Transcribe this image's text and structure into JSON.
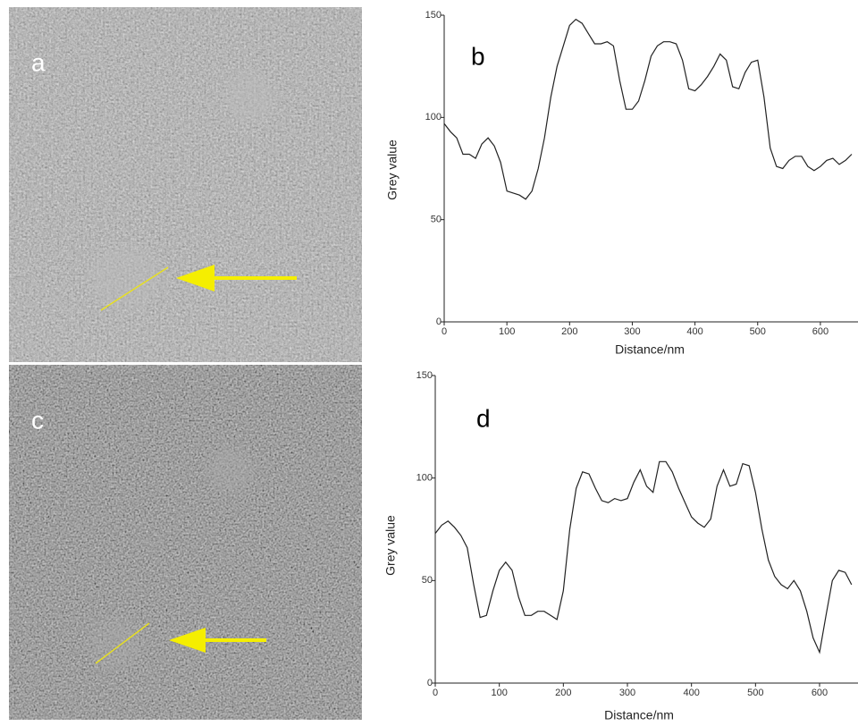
{
  "images": [
    {
      "label": "a"
    },
    {
      "label": "c"
    }
  ],
  "chart_data": [
    {
      "type": "line",
      "panel_label": "b",
      "xlabel": "Distance/nm",
      "ylabel": "Grey value",
      "x": [
        0,
        10,
        20,
        30,
        40,
        50,
        60,
        70,
        80,
        90,
        100,
        110,
        120,
        130,
        140,
        150,
        160,
        170,
        180,
        190,
        200,
        210,
        220,
        230,
        240,
        250,
        260,
        270,
        280,
        290,
        300,
        310,
        320,
        330,
        340,
        350,
        360,
        370,
        380,
        390,
        400,
        410,
        420,
        430,
        440,
        450,
        460,
        470,
        480,
        490,
        500,
        510,
        520,
        530,
        540,
        550,
        560,
        570,
        580,
        590,
        600,
        610,
        620,
        630,
        640,
        650
      ],
      "series": [
        {
          "color": "#222222",
          "values": [
            97,
            93,
            90,
            82,
            82,
            80,
            87,
            90,
            86,
            78,
            64,
            63,
            62,
            60,
            64,
            75,
            90,
            110,
            125,
            135,
            145,
            148,
            146,
            141,
            136,
            136,
            137,
            135,
            118,
            104,
            104,
            108,
            118,
            130,
            135,
            137,
            137,
            136,
            128,
            114,
            113,
            116,
            120,
            125,
            131,
            128,
            115,
            114,
            122,
            127,
            128,
            110,
            85,
            76,
            75,
            79,
            81,
            81,
            76,
            74,
            76,
            79,
            80,
            77,
            79,
            82
          ]
        }
      ],
      "xlim": [
        0,
        660
      ],
      "xticks": [
        0,
        100,
        200,
        300,
        400,
        500,
        600
      ],
      "ylim": [
        0,
        150
      ],
      "yticks": [
        0,
        50,
        100,
        150
      ]
    },
    {
      "type": "line",
      "panel_label": "d",
      "xlabel": "Distance/nm",
      "ylabel": "Grey value",
      "x": [
        0,
        10,
        20,
        30,
        40,
        50,
        60,
        70,
        80,
        90,
        100,
        110,
        120,
        130,
        140,
        150,
        160,
        170,
        180,
        190,
        200,
        210,
        220,
        230,
        240,
        250,
        260,
        270,
        280,
        290,
        300,
        310,
        320,
        330,
        340,
        350,
        360,
        370,
        380,
        390,
        400,
        410,
        420,
        430,
        440,
        450,
        460,
        470,
        480,
        490,
        500,
        510,
        520,
        530,
        540,
        550,
        560,
        570,
        580,
        590,
        600,
        610,
        620,
        630,
        640,
        650
      ],
      "series": [
        {
          "color": "#222222",
          "values": [
            73,
            77,
            79,
            76,
            72,
            66,
            48,
            32,
            33,
            45,
            55,
            59,
            55,
            42,
            33,
            33,
            35,
            35,
            33,
            31,
            45,
            75,
            95,
            103,
            102,
            95,
            89,
            88,
            90,
            89,
            90,
            98,
            104,
            96,
            93,
            108,
            108,
            103,
            95,
            88,
            81,
            78,
            76,
            80,
            96,
            104,
            96,
            97,
            107,
            106,
            93,
            75,
            60,
            52,
            48,
            46,
            50,
            45,
            35,
            22,
            15,
            33,
            50,
            55,
            54,
            48
          ]
        }
      ],
      "xlim": [
        0,
        660
      ],
      "xticks": [
        0,
        100,
        200,
        300,
        400,
        500,
        600
      ],
      "ylim": [
        0,
        150
      ],
      "yticks": [
        0,
        50,
        100,
        150
      ]
    }
  ]
}
